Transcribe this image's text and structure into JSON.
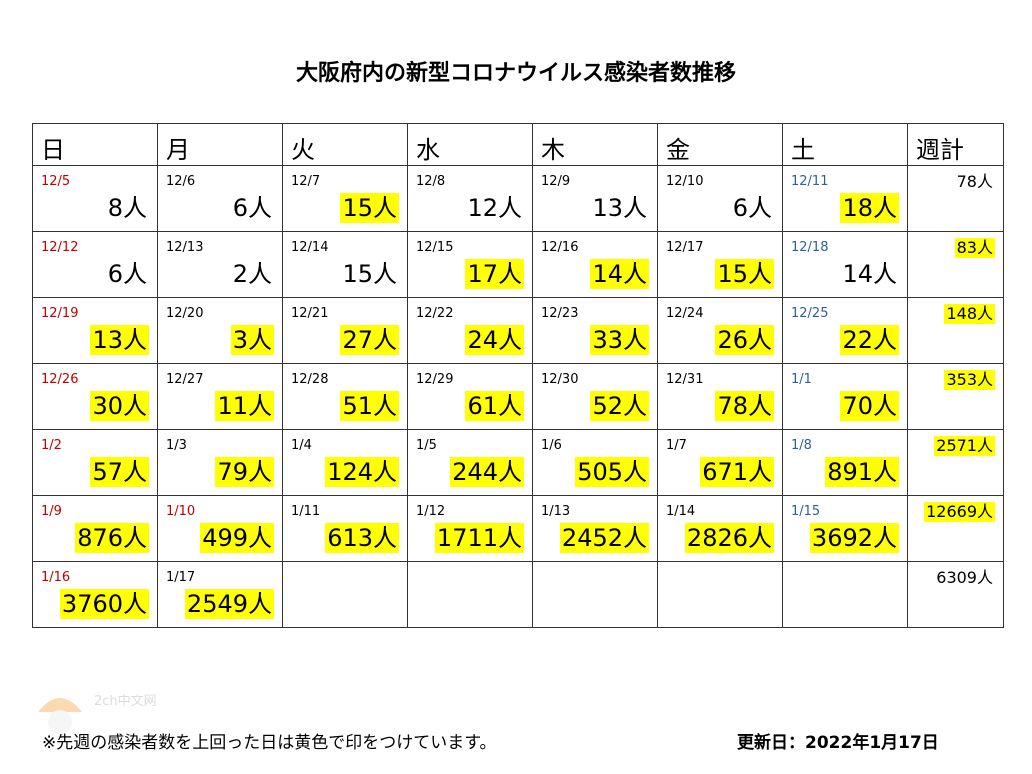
{
  "title": "大阪府内の新型コロナウイルス感染者数推移",
  "headers": [
    "日",
    "月",
    "火",
    "水",
    "木",
    "金",
    "土",
    "週計"
  ],
  "rows": [
    {
      "cells": [
        {
          "date": "12/5",
          "count": "8人",
          "hl": false
        },
        {
          "date": "12/6",
          "count": "6人",
          "hl": false
        },
        {
          "date": "12/7",
          "count": "15人",
          "hl": true
        },
        {
          "date": "12/8",
          "count": "12人",
          "hl": false
        },
        {
          "date": "12/9",
          "count": "13人",
          "hl": false
        },
        {
          "date": "12/10",
          "count": "6人",
          "hl": false
        },
        {
          "date": "12/11",
          "count": "18人",
          "hl": true
        }
      ],
      "week": {
        "value": "78人",
        "hl": false
      }
    },
    {
      "cells": [
        {
          "date": "12/12",
          "count": "6人",
          "hl": false
        },
        {
          "date": "12/13",
          "count": "2人",
          "hl": false
        },
        {
          "date": "12/14",
          "count": "15人",
          "hl": false
        },
        {
          "date": "12/15",
          "count": "17人",
          "hl": true
        },
        {
          "date": "12/16",
          "count": "14人",
          "hl": true
        },
        {
          "date": "12/17",
          "count": "15人",
          "hl": true
        },
        {
          "date": "12/18",
          "count": "14人",
          "hl": false
        }
      ],
      "week": {
        "value": "83人",
        "hl": true
      }
    },
    {
      "cells": [
        {
          "date": "12/19",
          "count": "13人",
          "hl": true
        },
        {
          "date": "12/20",
          "count": "3人",
          "hl": true
        },
        {
          "date": "12/21",
          "count": "27人",
          "hl": true
        },
        {
          "date": "12/22",
          "count": "24人",
          "hl": true
        },
        {
          "date": "12/23",
          "count": "33人",
          "hl": true
        },
        {
          "date": "12/24",
          "count": "26人",
          "hl": true
        },
        {
          "date": "12/25",
          "count": "22人",
          "hl": true
        }
      ],
      "week": {
        "value": "148人",
        "hl": true
      }
    },
    {
      "cells": [
        {
          "date": "12/26",
          "count": "30人",
          "hl": true
        },
        {
          "date": "12/27",
          "count": "11人",
          "hl": true
        },
        {
          "date": "12/28",
          "count": "51人",
          "hl": true
        },
        {
          "date": "12/29",
          "count": "61人",
          "hl": true
        },
        {
          "date": "12/30",
          "count": "52人",
          "hl": true
        },
        {
          "date": "12/31",
          "count": "78人",
          "hl": true
        },
        {
          "date": "1/1",
          "count": "70人",
          "hl": true
        }
      ],
      "week": {
        "value": "353人",
        "hl": true
      }
    },
    {
      "cells": [
        {
          "date": "1/2",
          "count": "57人",
          "hl": true
        },
        {
          "date": "1/3",
          "count": "79人",
          "hl": true
        },
        {
          "date": "1/4",
          "count": "124人",
          "hl": true
        },
        {
          "date": "1/5",
          "count": "244人",
          "hl": true
        },
        {
          "date": "1/6",
          "count": "505人",
          "hl": true
        },
        {
          "date": "1/7",
          "count": "671人",
          "hl": true
        },
        {
          "date": "1/8",
          "count": "891人",
          "hl": true
        }
      ],
      "week": {
        "value": "2571人",
        "hl": true
      }
    },
    {
      "cells": [
        {
          "date": "1/9",
          "count": "876人",
          "hl": true
        },
        {
          "date": "1/10",
          "count": "499人",
          "hl": true
        },
        {
          "date": "1/11",
          "count": "613人",
          "hl": true
        },
        {
          "date": "1/12",
          "count": "1711人",
          "hl": true
        },
        {
          "date": "1/13",
          "count": "2452人",
          "hl": true
        },
        {
          "date": "1/14",
          "count": "2826人",
          "hl": true
        },
        {
          "date": "1/15",
          "count": "3692人",
          "hl": true
        }
      ],
      "week": {
        "value": "12669人",
        "hl": true
      }
    },
    {
      "cells": [
        {
          "date": "1/16",
          "count": "3760人",
          "hl": true
        },
        {
          "date": "1/17",
          "count": "2549人",
          "hl": true
        },
        {
          "date": "",
          "count": "",
          "hl": false
        },
        {
          "date": "",
          "count": "",
          "hl": false
        },
        {
          "date": "",
          "count": "",
          "hl": false
        },
        {
          "date": "",
          "count": "",
          "hl": false
        },
        {
          "date": "",
          "count": "",
          "hl": false
        }
      ],
      "week": {
        "value": "6309人",
        "hl": false
      }
    }
  ],
  "footnote": "※先週の感染者数を上回った日は黄色で印をつけています。",
  "updated": "更新日：2022年1月17日",
  "watermark": "2ch中文网",
  "colors": {
    "highlight": "#ffff00",
    "sunday_header": "#f9cdcd",
    "saturday_header": "#d6e3f5",
    "weekday_header": "#e6e6e6",
    "sunday_date": "#c00000",
    "saturday_date": "#2e5e9e"
  }
}
